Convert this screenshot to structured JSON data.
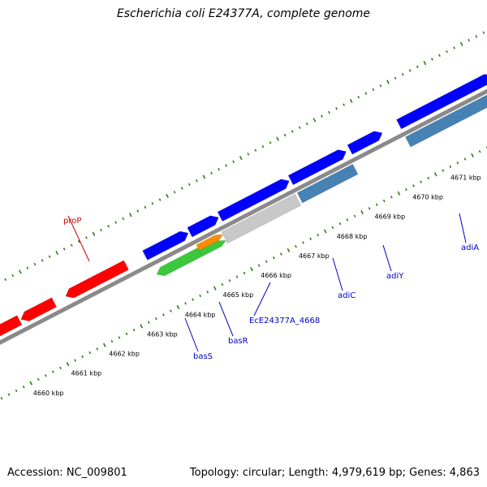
{
  "title": "Escherichia coli E24377A, complete genome",
  "footer": {
    "accession": "Accession: NC_009801",
    "summary": "Topology: circular; Length: 4,979,619 bp; Genes: 4,863"
  },
  "colors": {
    "background": "#ffffff",
    "backbone": "#8a8a8a",
    "ticks": "#2e7d1a",
    "reverse_gene": "#ff0000",
    "forward_gene": "#0000ff",
    "forward_gene_alt": "#4682b4",
    "green_gene": "#3cc83c",
    "orange_gene": "#ff8c00",
    "grey_gene": "#c8c8c8",
    "label_blue": "#0000cc",
    "label_red": "#cc0000"
  },
  "scale": {
    "ticks": [
      {
        "text": "4660 kbp"
      },
      {
        "text": "4661 kbp"
      },
      {
        "text": "4662 kbp"
      },
      {
        "text": "4663 kbp"
      },
      {
        "text": "4664 kbp"
      },
      {
        "text": "4665 kbp"
      },
      {
        "text": "4666 kbp"
      },
      {
        "text": "4667 kbp"
      },
      {
        "text": "4668 kbp"
      },
      {
        "text": "4669 kbp"
      },
      {
        "text": "4670 kbp"
      },
      {
        "text": "4671 kbp"
      }
    ]
  },
  "gene_labels": [
    {
      "name": "proP"
    },
    {
      "name": "basS"
    },
    {
      "name": "basR"
    },
    {
      "name": "EcE24377A_4668"
    },
    {
      "name": "adiC"
    },
    {
      "name": "adiY"
    },
    {
      "name": "adiA"
    }
  ]
}
